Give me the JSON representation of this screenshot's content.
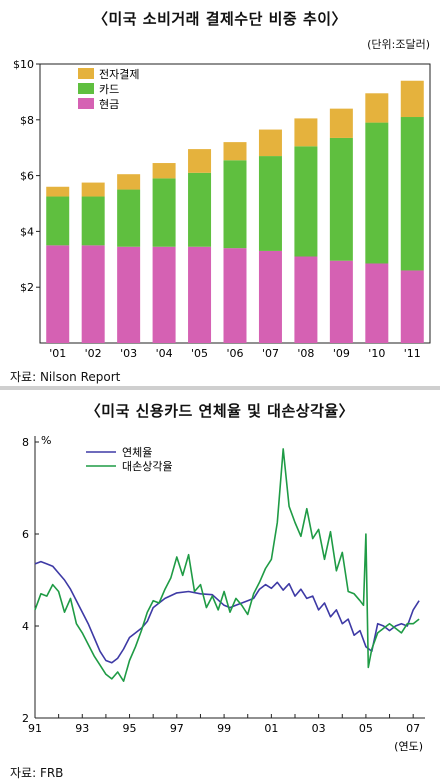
{
  "chart_data": [
    {
      "type": "bar",
      "title": "〈미국 소비거래 결제수단 비중 추이〉",
      "unit_note": "(단위:조달러)",
      "source": "자료: Nilson Report",
      "categories": [
        "'01",
        "'02",
        "'03",
        "'04",
        "'05",
        "'06",
        "'07",
        "'08",
        "'09",
        "'10",
        "'11"
      ],
      "ylim": [
        0,
        10
      ],
      "y_ticks": [
        {
          "value": 2,
          "label": "$2"
        },
        {
          "value": 4,
          "label": "$4"
        },
        {
          "value": 6,
          "label": "$6"
        },
        {
          "value": 8,
          "label": "$8"
        },
        {
          "value": 10,
          "label": "$10"
        }
      ],
      "stacked": true,
      "legend_position": "top-left",
      "series": [
        {
          "name": "현금",
          "color": "#d561b3",
          "values": [
            3.5,
            3.5,
            3.45,
            3.45,
            3.45,
            3.4,
            3.3,
            3.1,
            2.95,
            2.85,
            2.6
          ]
        },
        {
          "name": "카드",
          "color": "#5fbf3f",
          "values": [
            1.75,
            1.75,
            2.05,
            2.45,
            2.65,
            3.15,
            3.4,
            3.95,
            4.4,
            5.05,
            5.5
          ]
        },
        {
          "name": "전자결제",
          "color": "#e5b23d",
          "values": [
            0.35,
            0.5,
            0.55,
            0.55,
            0.85,
            0.65,
            0.95,
            1.0,
            1.05,
            1.05,
            1.3
          ]
        }
      ],
      "legend_order": [
        "전자결제",
        "카드",
        "현금"
      ]
    },
    {
      "type": "line",
      "title": "〈미국 신용카드 연체율 및 대손상각율〉",
      "ylabel": "%",
      "xlabel": "(연도)",
      "source": "자료: FRB",
      "xlim": [
        1991,
        2007.5
      ],
      "ylim": [
        2,
        8
      ],
      "y_ticks": [
        2,
        4,
        6,
        8
      ],
      "x_ticks": [
        {
          "value": 1991,
          "label": "91"
        },
        {
          "value": 1993,
          "label": "93"
        },
        {
          "value": 1995,
          "label": "95"
        },
        {
          "value": 1997,
          "label": "97"
        },
        {
          "value": 1999,
          "label": "99"
        },
        {
          "value": 2001,
          "label": "01"
        },
        {
          "value": 2003,
          "label": "03"
        },
        {
          "value": 2005,
          "label": "05"
        },
        {
          "value": 2007,
          "label": "07"
        }
      ],
      "legend_position": "top-left",
      "series": [
        {
          "name": "연체율",
          "color": "#3e3aa5",
          "x": [
            1991,
            1991.25,
            1991.5,
            1991.75,
            1992,
            1992.25,
            1992.5,
            1992.75,
            1993,
            1993.25,
            1993.5,
            1993.75,
            1994,
            1994.25,
            1994.5,
            1994.75,
            1995,
            1995.25,
            1995.5,
            1995.75,
            1996,
            1996.5,
            1997,
            1997.5,
            1998,
            1998.5,
            1999,
            1999.25,
            1999.5,
            1999.75,
            2000,
            2000.25,
            2000.5,
            2000.75,
            2001,
            2001.25,
            2001.5,
            2001.75,
            2002,
            2002.25,
            2002.5,
            2002.75,
            2003,
            2003.25,
            2003.5,
            2003.75,
            2004,
            2004.25,
            2004.5,
            2004.75,
            2005,
            2005.25,
            2005.5,
            2005.75,
            2006,
            2006.25,
            2006.5,
            2006.75,
            2007,
            2007.25
          ],
          "y": [
            5.35,
            5.4,
            5.35,
            5.3,
            5.15,
            5.0,
            4.8,
            4.55,
            4.3,
            4.05,
            3.75,
            3.45,
            3.25,
            3.2,
            3.3,
            3.5,
            3.75,
            3.85,
            3.95,
            4.1,
            4.4,
            4.6,
            4.72,
            4.75,
            4.7,
            4.68,
            4.45,
            4.4,
            4.45,
            4.5,
            4.55,
            4.6,
            4.8,
            4.9,
            4.82,
            4.95,
            4.78,
            4.92,
            4.65,
            4.8,
            4.6,
            4.65,
            4.35,
            4.5,
            4.2,
            4.35,
            4.05,
            4.15,
            3.8,
            3.9,
            3.55,
            3.45,
            4.05,
            4.0,
            3.9,
            4.0,
            4.05,
            4.0,
            4.35,
            4.55
          ]
        },
        {
          "name": "대손상각율",
          "color": "#1f9b45",
          "x": [
            1991,
            1991.25,
            1991.5,
            1991.75,
            1992,
            1992.25,
            1992.5,
            1992.75,
            1993,
            1993.25,
            1993.5,
            1993.75,
            1994,
            1994.25,
            1994.5,
            1994.75,
            1995,
            1995.25,
            1995.5,
            1995.75,
            1996,
            1996.25,
            1996.5,
            1996.75,
            1997,
            1997.25,
            1997.5,
            1997.75,
            1998,
            1998.25,
            1998.5,
            1998.75,
            1999,
            1999.25,
            1999.5,
            1999.75,
            2000,
            2000.25,
            2000.5,
            2000.75,
            2001,
            2001.25,
            2001.5,
            2001.75,
            2002,
            2002.25,
            2002.5,
            2002.75,
            2003,
            2003.25,
            2003.5,
            2003.75,
            2004,
            2004.25,
            2004.5,
            2004.75,
            2004.9,
            2005,
            2005.1,
            2005.25,
            2005.5,
            2005.75,
            2006,
            2006.25,
            2006.5,
            2006.75,
            2007,
            2007.25
          ],
          "y": [
            4.35,
            4.7,
            4.65,
            4.9,
            4.75,
            4.3,
            4.6,
            4.05,
            3.85,
            3.6,
            3.35,
            3.15,
            2.95,
            2.85,
            3.0,
            2.8,
            3.25,
            3.55,
            3.9,
            4.3,
            4.55,
            4.5,
            4.8,
            5.05,
            5.5,
            5.1,
            5.55,
            4.75,
            4.9,
            4.4,
            4.65,
            4.35,
            4.75,
            4.3,
            4.6,
            4.45,
            4.25,
            4.7,
            4.95,
            5.25,
            5.45,
            6.25,
            7.85,
            6.6,
            6.25,
            5.95,
            6.55,
            5.9,
            6.1,
            5.45,
            6.05,
            5.2,
            5.6,
            4.75,
            4.7,
            4.55,
            4.45,
            6.0,
            3.1,
            3.5,
            3.85,
            3.95,
            4.05,
            3.95,
            3.85,
            4.05,
            4.05,
            4.15
          ]
        }
      ]
    }
  ]
}
